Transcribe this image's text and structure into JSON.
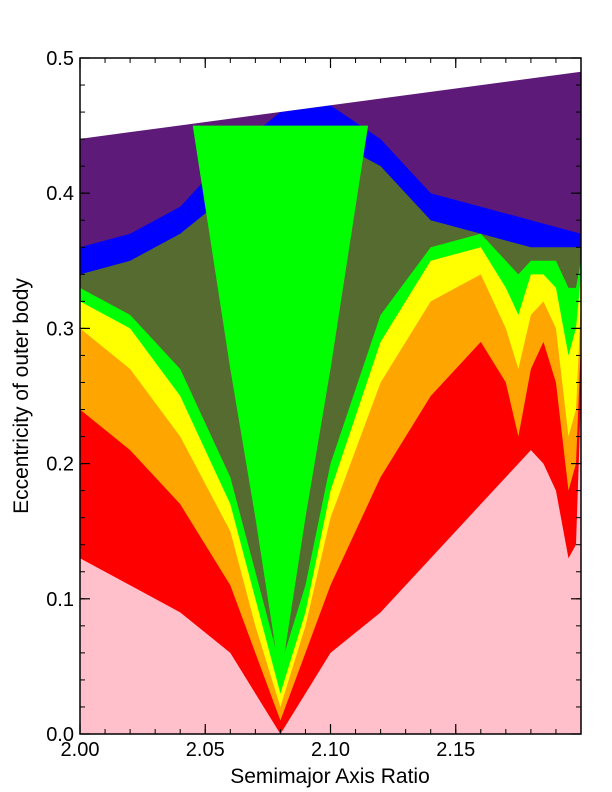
{
  "chart_data": {
    "type": "heatmap",
    "title": "",
    "xlabel": "Semimajor Axis Ratio",
    "ylabel": "Eccentricity of outer body",
    "xlim": [
      2.0,
      2.2
    ],
    "ylim": [
      0.0,
      0.5
    ],
    "x_ticks": [
      "2.00",
      "2.05",
      "2.10",
      "2.15"
    ],
    "y_ticks": [
      "0.0",
      "0.1",
      "0.2",
      "0.3",
      "0.4",
      "0.5"
    ],
    "grid": false,
    "legend": "none",
    "colors": {
      "level_0": "#ffc0cb",
      "level_1": "#ff0000",
      "level_2": "#ffa500",
      "level_3": "#ffff00",
      "level_4": "#00ff00",
      "level_5": "#556b2f",
      "level_6": "#0000ff",
      "level_7": "#5e1a78",
      "no_data": "#ffffff"
    },
    "boundary_top": {
      "x": [
        2.0,
        2.2
      ],
      "y": [
        0.44,
        0.49
      ]
    },
    "contours": [
      {
        "level": 1,
        "color": "#ff0000",
        "x": [
          2.0,
          2.02,
          2.04,
          2.06,
          2.07,
          2.08,
          2.09,
          2.1,
          2.12,
          2.14,
          2.16,
          2.17,
          2.175,
          2.18,
          2.185,
          2.19,
          2.195,
          2.198,
          2.2
        ],
        "y": [
          0.13,
          0.11,
          0.09,
          0.06,
          0.03,
          0.0,
          0.03,
          0.06,
          0.09,
          0.13,
          0.17,
          0.19,
          0.2,
          0.21,
          0.2,
          0.18,
          0.13,
          0.14,
          0.25
        ]
      },
      {
        "level": 2,
        "color": "#ffa500",
        "x": [
          2.0,
          2.02,
          2.04,
          2.06,
          2.07,
          2.08,
          2.09,
          2.1,
          2.12,
          2.14,
          2.16,
          2.17,
          2.175,
          2.18,
          2.185,
          2.19,
          2.195,
          2.198,
          2.2
        ],
        "y": [
          0.24,
          0.21,
          0.17,
          0.11,
          0.06,
          0.01,
          0.06,
          0.11,
          0.19,
          0.25,
          0.29,
          0.26,
          0.22,
          0.27,
          0.29,
          0.26,
          0.18,
          0.2,
          0.29
        ]
      },
      {
        "level": 3,
        "color": "#ffff00",
        "x": [
          2.0,
          2.02,
          2.04,
          2.06,
          2.07,
          2.08,
          2.09,
          2.1,
          2.12,
          2.14,
          2.16,
          2.17,
          2.175,
          2.18,
          2.185,
          2.19,
          2.195,
          2.198,
          2.2
        ],
        "y": [
          0.3,
          0.27,
          0.22,
          0.15,
          0.08,
          0.02,
          0.08,
          0.16,
          0.26,
          0.32,
          0.34,
          0.3,
          0.27,
          0.31,
          0.32,
          0.3,
          0.22,
          0.24,
          0.32
        ]
      },
      {
        "level": 4,
        "color": "#00ff00",
        "x": [
          2.0,
          2.02,
          2.04,
          2.06,
          2.07,
          2.08,
          2.09,
          2.1,
          2.12,
          2.14,
          2.16,
          2.17,
          2.175,
          2.18,
          2.185,
          2.19,
          2.195,
          2.198,
          2.2
        ],
        "y": [
          0.32,
          0.3,
          0.25,
          0.17,
          0.1,
          0.03,
          0.09,
          0.18,
          0.29,
          0.35,
          0.36,
          0.33,
          0.31,
          0.34,
          0.34,
          0.33,
          0.28,
          0.3,
          0.34
        ]
      },
      {
        "level": 5,
        "color": "#556b2f",
        "x": [
          2.0,
          2.02,
          2.04,
          2.06,
          2.07,
          2.08,
          2.09,
          2.1,
          2.12,
          2.14,
          2.16,
          2.17,
          2.175,
          2.18,
          2.185,
          2.19,
          2.195,
          2.198,
          2.2
        ],
        "y": [
          0.33,
          0.31,
          0.27,
          0.19,
          0.12,
          0.05,
          0.11,
          0.2,
          0.31,
          0.36,
          0.37,
          0.35,
          0.34,
          0.35,
          0.35,
          0.35,
          0.33,
          0.33,
          0.35
        ]
      },
      {
        "level": 6,
        "color": "#0000ff",
        "x": [
          2.0,
          2.02,
          2.04,
          2.06,
          2.08,
          2.1,
          2.12,
          2.14,
          2.16,
          2.18,
          2.2
        ],
        "y": [
          0.34,
          0.35,
          0.37,
          0.4,
          0.44,
          0.44,
          0.42,
          0.38,
          0.37,
          0.36,
          0.36
        ]
      },
      {
        "level": 7,
        "color": "#5e1a78",
        "x": [
          2.0,
          2.02,
          2.04,
          2.06,
          2.08,
          2.1,
          2.12,
          2.14,
          2.16,
          2.18,
          2.2
        ],
        "y": [
          0.36,
          0.37,
          0.39,
          0.43,
          0.46,
          0.465,
          0.44,
          0.4,
          0.39,
          0.38,
          0.37
        ]
      }
    ],
    "green_core": {
      "x": [
        2.045,
        2.06,
        2.07,
        2.08,
        2.09,
        2.1,
        2.115
      ],
      "y": [
        0.45,
        0.27,
        0.16,
        0.04,
        0.16,
        0.27,
        0.45
      ]
    }
  }
}
